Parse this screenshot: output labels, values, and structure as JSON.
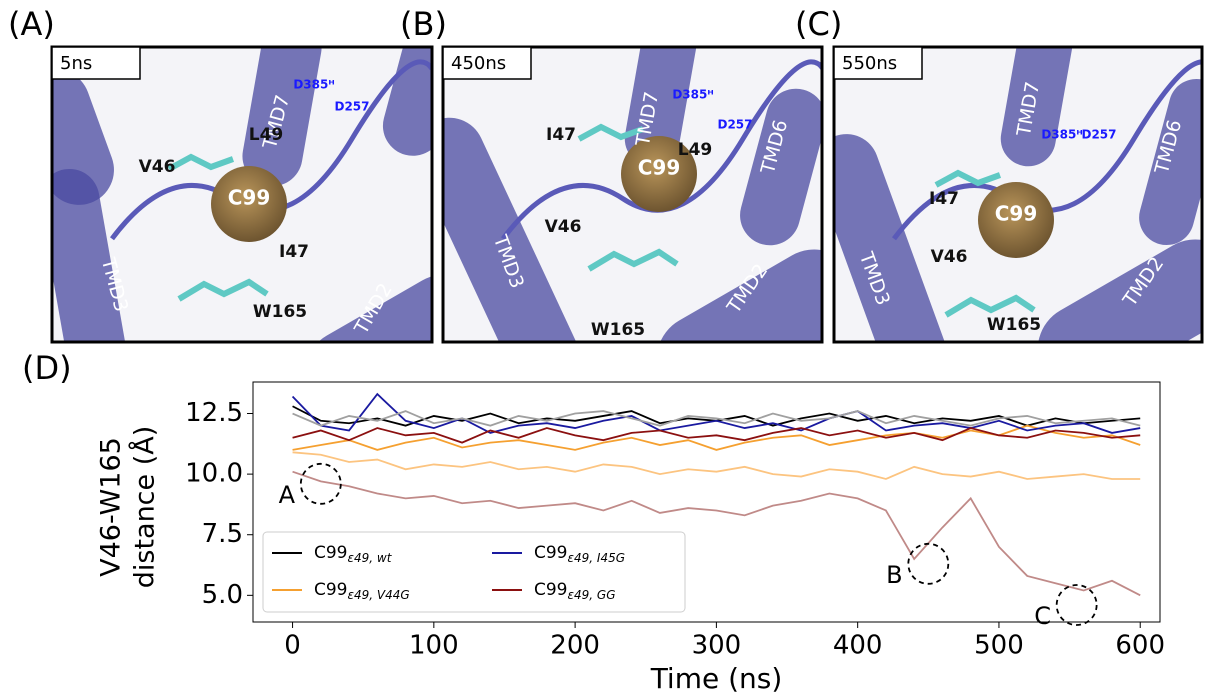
{
  "panels": [
    {
      "letter": "(A)",
      "time": "5ns",
      "labels": [
        "TMD7",
        "D385ᴴ",
        "D257",
        "V46",
        "L49",
        "C99",
        "I47",
        "TMD3",
        "W165",
        "TMD2"
      ]
    },
    {
      "letter": "(B)",
      "time": "450ns",
      "labels": [
        "TMD7",
        "D385ᴴ",
        "D257",
        "TMD6",
        "I47",
        "C99",
        "L49",
        "V46",
        "TMD3",
        "TMD2",
        "W165"
      ]
    },
    {
      "letter": "(C)",
      "time": "550ns",
      "labels": [
        "TMD7",
        "TMD6",
        "D385ᴴ",
        "D257",
        "I47",
        "C99",
        "V46",
        "TMD3",
        "TMD2",
        "W165"
      ]
    }
  ],
  "chart_data": {
    "type": "line",
    "panel_letter": "(D)",
    "xlabel": "Time (ns)",
    "ylabel": [
      "V46-W165",
      "distance (Å)"
    ],
    "x": [
      0,
      20,
      40,
      60,
      80,
      100,
      120,
      140,
      160,
      180,
      200,
      220,
      240,
      260,
      280,
      300,
      320,
      340,
      360,
      380,
      400,
      420,
      440,
      460,
      480,
      500,
      520,
      540,
      560,
      580,
      600
    ],
    "series": [
      {
        "name": "C99",
        "subscript": "ε49, wt",
        "color": "#000000",
        "values": [
          12.8,
          12.2,
          12.1,
          12.3,
          12.0,
          12.4,
          12.2,
          12.5,
          12.1,
          12.3,
          12.2,
          12.4,
          12.6,
          12.1,
          12.3,
          12.2,
          12.4,
          12.0,
          12.3,
          12.5,
          12.2,
          12.4,
          12.1,
          12.3,
          12.2,
          12.4,
          12.0,
          12.3,
          12.1,
          12.2,
          12.3
        ]
      },
      {
        "name": "C99",
        "subscript": "ε49, V44G",
        "color": "#f5a030",
        "values": [
          11.0,
          11.2,
          11.4,
          11.0,
          11.3,
          11.5,
          11.1,
          11.3,
          11.4,
          11.2,
          11.0,
          11.3,
          11.5,
          11.2,
          11.4,
          11.0,
          11.3,
          11.5,
          11.6,
          11.2,
          11.4,
          11.6,
          11.7,
          11.5,
          11.8,
          11.6,
          12.0,
          11.7,
          11.5,
          11.6,
          11.2
        ]
      },
      {
        "name": "C99",
        "subscript": "ε49, I45G",
        "color": "#1a1aa0",
        "values": [
          13.2,
          12.0,
          11.8,
          13.3,
          12.2,
          11.9,
          12.3,
          11.7,
          12.0,
          12.1,
          11.9,
          12.2,
          12.4,
          11.8,
          12.0,
          12.2,
          11.9,
          12.1,
          11.8,
          12.3,
          12.6,
          11.8,
          12.0,
          12.1,
          11.9,
          12.2,
          11.8,
          12.0,
          12.1,
          11.7,
          11.9
        ]
      },
      {
        "name": "C99",
        "subscript": "ε49, GG",
        "color": "#8b1010",
        "values": [
          11.5,
          11.8,
          11.4,
          11.9,
          11.6,
          11.7,
          11.3,
          11.8,
          11.5,
          11.9,
          11.6,
          11.4,
          11.7,
          11.8,
          11.5,
          11.6,
          11.4,
          11.7,
          11.9,
          11.6,
          11.8,
          11.5,
          11.7,
          11.4,
          11.9,
          11.6,
          11.5,
          11.8,
          11.7,
          11.5,
          11.6
        ]
      },
      {
        "color": "#a0a0a0",
        "values": [
          12.5,
          12.0,
          12.4,
          12.2,
          12.6,
          12.1,
          12.3,
          12.0,
          12.4,
          12.2,
          12.5,
          12.6,
          12.3,
          12.0,
          12.4,
          12.3,
          12.1,
          12.5,
          12.2,
          12.3,
          12.6,
          12.1,
          12.4,
          12.2,
          12.0,
          12.3,
          12.4,
          12.1,
          12.2,
          12.3,
          12.0
        ]
      },
      {
        "color": "#fcc480",
        "values": [
          10.9,
          10.8,
          10.5,
          10.6,
          10.2,
          10.4,
          10.3,
          10.5,
          10.2,
          10.3,
          10.1,
          10.4,
          10.3,
          10.0,
          10.2,
          10.1,
          10.3,
          10.0,
          9.9,
          10.2,
          10.1,
          9.8,
          10.3,
          10.0,
          9.9,
          10.1,
          9.8,
          9.9,
          10.0,
          9.8,
          9.8
        ]
      },
      {
        "color": "#c08a88",
        "values": [
          10.1,
          9.7,
          9.5,
          9.2,
          9.0,
          9.1,
          8.8,
          8.9,
          8.6,
          8.7,
          8.8,
          8.5,
          8.9,
          8.4,
          8.6,
          8.5,
          8.3,
          8.7,
          8.9,
          9.2,
          9.0,
          8.5,
          6.5,
          7.8,
          9.0,
          7.0,
          5.8,
          5.5,
          5.2,
          5.6,
          5.0
        ]
      }
    ],
    "annotations": [
      {
        "text": "A",
        "x": 20,
        "y": 9.6
      },
      {
        "text": "B",
        "x": 450,
        "y": 6.3
      },
      {
        "text": "C",
        "x": 555,
        "y": 4.6
      }
    ],
    "xlim": [
      -28,
      614
    ],
    "ylim": [
      3.9,
      13.8
    ],
    "xticks": [
      0,
      100,
      200,
      300,
      400,
      500,
      600
    ],
    "yticks": [
      {
        "value": 5,
        "label": "5.0"
      },
      7.5,
      {
        "value": 10,
        "label": "10.0"
      },
      12.5
    ]
  }
}
